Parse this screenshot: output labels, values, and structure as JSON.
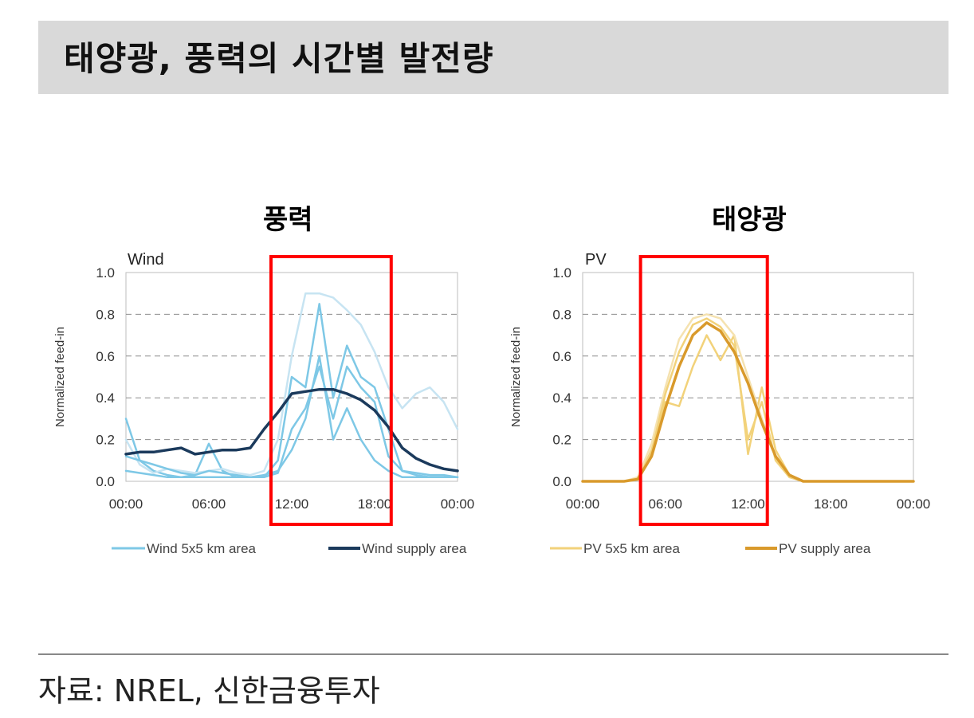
{
  "header": {
    "title": "태양광, 풍력의 시간별 발전량"
  },
  "panels": {
    "wind_label": "풍력",
    "pv_label": "태양광"
  },
  "source": "자료: NREL, 신한금융투자",
  "colors": {
    "wind_local": "#7ec8e6",
    "wind_local_light": "#c7e4f2",
    "wind_supply": "#1b3a5c",
    "pv_local": "#f2d27a",
    "pv_local_light": "#f5e2b0",
    "pv_supply": "#d99a2b",
    "highlight": "#ff0000"
  },
  "chart_data": [
    {
      "type": "line",
      "title": "Wind",
      "ylabel": "Normalized feed-in",
      "xlabel": "",
      "xlim": [
        0,
        24
      ],
      "ylim": [
        0,
        1.0
      ],
      "yticks": [
        "0.0",
        "0.2",
        "0.4",
        "0.6",
        "0.8",
        "1.0"
      ],
      "xticks": [
        "00:00",
        "06:00",
        "12:00",
        "18:00",
        "00:00"
      ],
      "grid": "horizontal dashed",
      "highlight_range": [
        10.5,
        19.2
      ],
      "series": [
        {
          "name": "Wind supply area",
          "role": "supply",
          "x": [
            0,
            1,
            2,
            3,
            4,
            5,
            6,
            7,
            8,
            9,
            10,
            11,
            12,
            13,
            14,
            15,
            16,
            17,
            18,
            19,
            20,
            21,
            22,
            23,
            24
          ],
          "values": [
            0.13,
            0.14,
            0.14,
            0.15,
            0.16,
            0.13,
            0.14,
            0.15,
            0.15,
            0.16,
            0.25,
            0.33,
            0.42,
            0.43,
            0.44,
            0.44,
            0.42,
            0.39,
            0.34,
            0.26,
            0.16,
            0.11,
            0.08,
            0.06,
            0.05
          ]
        },
        {
          "name": "Wind 5x5 km area",
          "role": "local",
          "x": [
            0,
            1,
            2,
            3,
            4,
            5,
            6,
            7,
            8,
            9,
            10,
            11,
            12,
            13,
            14,
            15,
            16,
            17,
            18,
            19,
            20,
            21,
            22,
            23,
            24
          ],
          "values": [
            0.3,
            0.1,
            0.05,
            0.03,
            0.02,
            0.03,
            0.18,
            0.05,
            0.02,
            0.02,
            0.02,
            0.1,
            0.5,
            0.45,
            0.85,
            0.4,
            0.65,
            0.5,
            0.45,
            0.25,
            0.05,
            0.03,
            0.02,
            0.02,
            0.02
          ]
        },
        {
          "name": "Wind 5x5 km area",
          "role": "local-light",
          "x": [
            0,
            1,
            2,
            3,
            4,
            5,
            6,
            7,
            8,
            9,
            10,
            11,
            12,
            13,
            14,
            15,
            16,
            17,
            18,
            19,
            20,
            21,
            22,
            23,
            24
          ],
          "values": [
            0.2,
            0.08,
            0.04,
            0.06,
            0.05,
            0.04,
            0.05,
            0.06,
            0.04,
            0.03,
            0.05,
            0.2,
            0.6,
            0.9,
            0.9,
            0.88,
            0.82,
            0.75,
            0.62,
            0.45,
            0.35,
            0.42,
            0.45,
            0.38,
            0.25
          ]
        },
        {
          "name": "Wind 5x5 km area",
          "role": "local",
          "x": [
            0,
            1,
            2,
            3,
            4,
            5,
            6,
            7,
            8,
            9,
            10,
            11,
            12,
            13,
            14,
            15,
            16,
            17,
            18,
            19,
            20,
            21,
            22,
            23,
            24
          ],
          "values": [
            0.12,
            0.1,
            0.08,
            0.06,
            0.04,
            0.03,
            0.05,
            0.04,
            0.03,
            0.02,
            0.02,
            0.04,
            0.25,
            0.35,
            0.55,
            0.3,
            0.55,
            0.45,
            0.38,
            0.12,
            0.05,
            0.04,
            0.03,
            0.03,
            0.02
          ]
        },
        {
          "name": "Wind 5x5 km area",
          "role": "local",
          "x": [
            0,
            1,
            2,
            3,
            4,
            5,
            6,
            7,
            8,
            9,
            10,
            11,
            12,
            13,
            14,
            15,
            16,
            17,
            18,
            19,
            20,
            21,
            22,
            23,
            24
          ],
          "values": [
            0.05,
            0.04,
            0.03,
            0.02,
            0.02,
            0.02,
            0.02,
            0.02,
            0.02,
            0.02,
            0.03,
            0.05,
            0.15,
            0.3,
            0.6,
            0.2,
            0.35,
            0.2,
            0.1,
            0.05,
            0.02,
            0.02,
            0.02,
            0.02,
            0.02
          ]
        }
      ],
      "legend": [
        "Wind 5x5 km area",
        "Wind supply area"
      ],
      "legend_placement": "bottom"
    },
    {
      "type": "line",
      "title": "PV",
      "ylabel": "Normalized feed-in",
      "xlabel": "",
      "xlim": [
        0,
        24
      ],
      "ylim": [
        0,
        1.0
      ],
      "yticks": [
        "0.0",
        "0.2",
        "0.4",
        "0.6",
        "0.8",
        "1.0"
      ],
      "xticks": [
        "00:00",
        "06:00",
        "12:00",
        "18:00",
        "00:00"
      ],
      "grid": "horizontal dashed",
      "highlight_range": [
        4.2,
        13.4
      ],
      "series": [
        {
          "name": "PV supply area",
          "role": "supply",
          "x": [
            0,
            1,
            2,
            3,
            4,
            5,
            6,
            7,
            8,
            9,
            10,
            11,
            12,
            13,
            14,
            15,
            16,
            17,
            18,
            19,
            20,
            21,
            22,
            23,
            24
          ],
          "values": [
            0,
            0,
            0,
            0,
            0.01,
            0.12,
            0.35,
            0.55,
            0.7,
            0.76,
            0.72,
            0.62,
            0.47,
            0.28,
            0.12,
            0.03,
            0,
            0,
            0,
            0,
            0,
            0,
            0,
            0,
            0
          ]
        },
        {
          "name": "PV 5x5 km area",
          "role": "local",
          "x": [
            0,
            1,
            2,
            3,
            4,
            5,
            6,
            7,
            8,
            9,
            10,
            11,
            12,
            13,
            14,
            15,
            16,
            17,
            18,
            19,
            20,
            21,
            22,
            23,
            24
          ],
          "values": [
            0,
            0,
            0,
            0,
            0.01,
            0.15,
            0.38,
            0.36,
            0.55,
            0.7,
            0.58,
            0.7,
            0.13,
            0.45,
            0.15,
            0.03,
            0,
            0,
            0,
            0,
            0,
            0,
            0,
            0,
            0
          ]
        },
        {
          "name": "PV 5x5 km area",
          "role": "local-light",
          "x": [
            0,
            1,
            2,
            3,
            4,
            5,
            6,
            7,
            8,
            9,
            10,
            11,
            12,
            13,
            14,
            15,
            16,
            17,
            18,
            19,
            20,
            21,
            22,
            23,
            24
          ],
          "values": [
            0,
            0,
            0,
            0,
            0.02,
            0.18,
            0.45,
            0.68,
            0.78,
            0.8,
            0.78,
            0.7,
            0.5,
            0.3,
            0.12,
            0.02,
            0,
            0,
            0,
            0,
            0,
            0,
            0,
            0,
            0
          ]
        },
        {
          "name": "PV 5x5 km area",
          "role": "local",
          "x": [
            0,
            1,
            2,
            3,
            4,
            5,
            6,
            7,
            8,
            9,
            10,
            11,
            12,
            13,
            14,
            15,
            16,
            17,
            18,
            19,
            20,
            21,
            22,
            23,
            24
          ],
          "values": [
            0,
            0,
            0,
            0,
            0.01,
            0.14,
            0.42,
            0.62,
            0.75,
            0.78,
            0.74,
            0.65,
            0.2,
            0.38,
            0.1,
            0.02,
            0,
            0,
            0,
            0,
            0,
            0,
            0,
            0,
            0
          ]
        }
      ],
      "legend": [
        "PV 5x5 km area",
        "PV supply area"
      ],
      "legend_placement": "bottom"
    }
  ]
}
